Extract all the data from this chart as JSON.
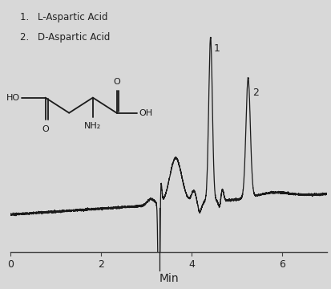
{
  "background_color": "#d8d8d8",
  "line_color": "#1a1a1a",
  "xlabel": "Min",
  "xlim": [
    0,
    7.0
  ],
  "xticks": [
    0,
    2,
    4,
    6
  ],
  "peak1_label": "1",
  "peak2_label": "2",
  "label1_prefix": "1. ",
  "label1_main": "L-Aspartic Acid",
  "label2_prefix": "2. ",
  "label2_main": "D-Aspartic Acid",
  "axis_fontsize": 9,
  "label_fontsize": 8.5,
  "struct_lw": 1.3
}
